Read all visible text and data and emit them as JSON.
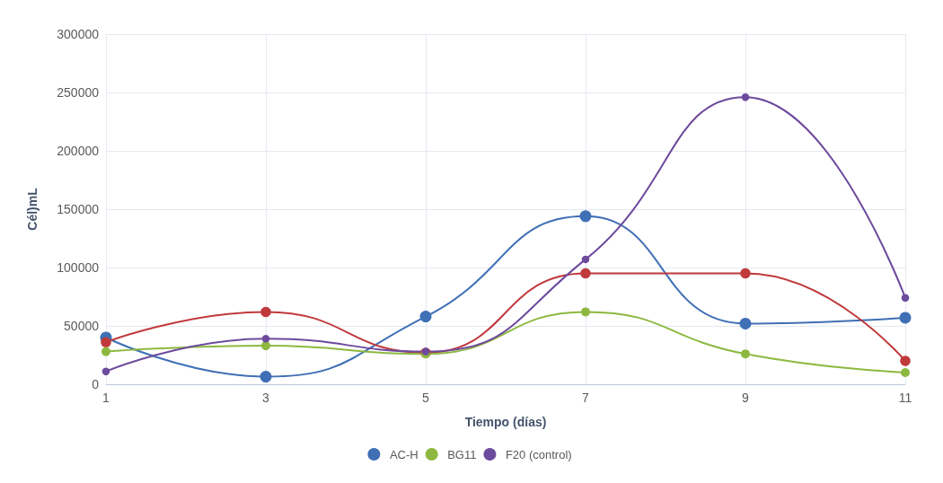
{
  "chart_data": {
    "type": "line",
    "xlabel": "Tiempo (días)",
    "ylabel": "Cél)mL",
    "x": [
      1,
      3,
      5,
      7,
      9,
      11
    ],
    "xlim": [
      1,
      11
    ],
    "xticks": [
      1,
      3,
      5,
      7,
      9,
      11
    ],
    "ylim": [
      0,
      300000
    ],
    "yticks": [
      0,
      50000,
      100000,
      150000,
      200000,
      250000,
      300000
    ],
    "grid": true,
    "legend": "bottom",
    "marker": "circle",
    "line_style": "solid",
    "series": [
      {
        "name": "AC-H",
        "color": "#3f6fb5",
        "values": [
          40000,
          6500,
          58000,
          144000,
          52000,
          57000
        ]
      },
      {
        "color": "#c0393b",
        "values": [
          36000,
          62000,
          27000,
          95000,
          95000,
          20000
        ]
      },
      {
        "name": "BG11",
        "color": "#8db83f",
        "values": [
          28000,
          33000,
          26000,
          62000,
          26000,
          10000
        ]
      },
      {
        "name": "F20 (control)",
        "color": "#6c4a9c",
        "values": [
          11000,
          39000,
          28000,
          107000,
          246000,
          74000
        ]
      }
    ]
  }
}
